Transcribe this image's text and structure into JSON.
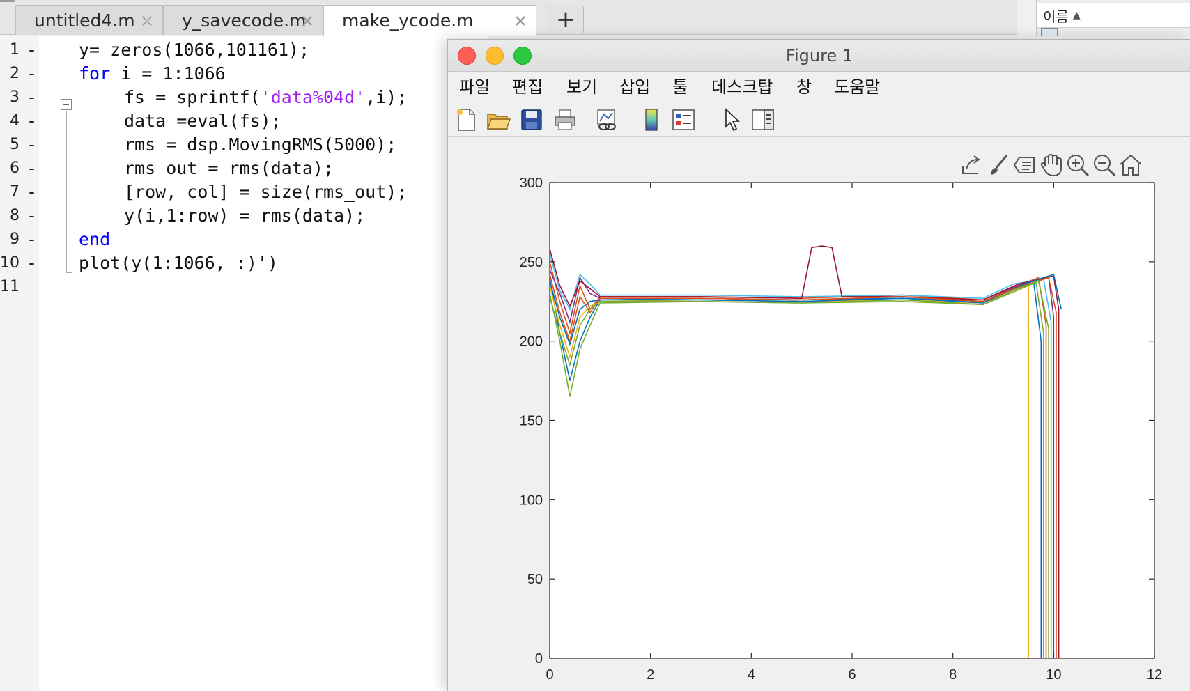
{
  "editor_tabs": [
    {
      "label": "untitled4.m",
      "active": false
    },
    {
      "label": "y_savecode.m",
      "active": false
    },
    {
      "label": "make_ycode.m",
      "active": true
    }
  ],
  "add_tab_label": "+",
  "file_panel": {
    "header": "이름",
    "sort_glyph": "▲",
    "icon": "folder-icon"
  },
  "code_lines": [
    {
      "n": "1",
      "dash": "-",
      "tokens": [
        {
          "t": "y= zeros(1066,101161);",
          "c": "plain"
        }
      ]
    },
    {
      "n": "2",
      "dash": "-",
      "tokens": [
        {
          "t": "for",
          "c": "kw"
        },
        {
          "t": " i = 1:1066",
          "c": "plain"
        }
      ]
    },
    {
      "n": "3",
      "dash": "-",
      "tokens": [
        {
          "t": "fs = sprintf(",
          "c": "plain"
        },
        {
          "t": "'data%04d'",
          "c": "str"
        },
        {
          "t": ",i);",
          "c": "plain"
        }
      ]
    },
    {
      "n": "4",
      "dash": "-",
      "tokens": [
        {
          "t": "data =eval(fs);",
          "c": "plain"
        }
      ]
    },
    {
      "n": "5",
      "dash": "-",
      "tokens": [
        {
          "t": "rms = dsp.MovingRMS(5000);",
          "c": "plain"
        }
      ]
    },
    {
      "n": "6",
      "dash": "-",
      "tokens": [
        {
          "t": "rms_out = rms(data);",
          "c": "plain"
        }
      ]
    },
    {
      "n": "7",
      "dash": "-",
      "tokens": [
        {
          "t": "[row, col] = size(rms_out);",
          "c": "plain"
        }
      ]
    },
    {
      "n": "8",
      "dash": "-",
      "tokens": [
        {
          "t": "y(i,1:row) = rms(data);",
          "c": "plain"
        }
      ]
    },
    {
      "n": "9",
      "dash": "-",
      "tokens": [
        {
          "t": "end",
          "c": "kw"
        }
      ]
    },
    {
      "n": "10",
      "dash": "-",
      "tokens": [
        {
          "t": "plot(y(1:1066, :)')",
          "c": "plain"
        }
      ]
    },
    {
      "n": "11",
      "dash": "",
      "tokens": []
    }
  ],
  "colors": {
    "keyword": "#0000ff",
    "string": "#a020f0"
  },
  "figure": {
    "title": "Figure 1",
    "menu": [
      "파일",
      "편집",
      "보기",
      "삽입",
      "툴",
      "데스크탑",
      "창",
      "도움말"
    ],
    "toolbar_icons": [
      "new-figure-icon",
      "open-file-icon",
      "save-icon",
      "print-icon",
      "link-plot-icon",
      "colorbar-icon",
      "legend-icon",
      "edit-plot-pointer-icon",
      "property-inspector-icon"
    ],
    "axes_toolbar_icons": [
      "export-icon",
      "brush-icon",
      "data-tips-icon",
      "pan-hand-icon",
      "zoom-in-icon",
      "zoom-out-icon",
      "home-icon"
    ]
  },
  "chart_data": {
    "type": "line",
    "title": "",
    "xlabel": "",
    "ylabel": "",
    "xlim": [
      0,
      12
    ],
    "ylim": [
      0,
      300
    ],
    "x_ticks": [
      "0",
      "2",
      "4",
      "6",
      "8",
      "10",
      "12"
    ],
    "y_ticks": [
      "0",
      "50",
      "100",
      "150",
      "200",
      "250",
      "300"
    ],
    "x_tick_values": [
      0,
      2,
      4,
      6,
      8,
      10,
      12
    ],
    "y_tick_values": [
      0,
      50,
      100,
      150,
      200,
      250,
      300
    ],
    "grid": false,
    "series_count_note_hidden": "",
    "series": [
      {
        "color": "#0072bd",
        "x": [
          0,
          0.2,
          0.4,
          0.6,
          0.8,
          1.0,
          3.0,
          5.0,
          7.0,
          8.6,
          9.2,
          9.6,
          9.75,
          9.75
        ],
        "y": [
          240,
          205,
          175,
          200,
          215,
          226,
          227,
          226,
          227,
          225,
          233,
          238,
          200,
          0
        ]
      },
      {
        "color": "#d95319",
        "x": [
          0,
          0.2,
          0.4,
          0.6,
          0.8,
          1.0,
          3.0,
          5.0,
          7.0,
          8.6,
          9.2,
          9.7,
          9.85,
          9.85
        ],
        "y": [
          250,
          225,
          205,
          235,
          220,
          228,
          228,
          227,
          229,
          226,
          234,
          240,
          210,
          0
        ]
      },
      {
        "color": "#edb120",
        "x": [
          0,
          0.2,
          0.4,
          0.6,
          0.8,
          1.0,
          3.0,
          5.0,
          7.0,
          8.6,
          9.2,
          9.5,
          9.5
        ],
        "y": [
          235,
          210,
          190,
          215,
          222,
          225,
          226,
          225,
          226,
          224,
          232,
          236,
          0
        ]
      },
      {
        "color": "#7e2f8e",
        "x": [
          0,
          0.2,
          0.4,
          0.6,
          0.8,
          1.0,
          3.0,
          5.0,
          7.0,
          8.6,
          9.3,
          9.9,
          10.0,
          10.0
        ],
        "y": [
          245,
          230,
          212,
          240,
          230,
          227,
          227,
          226,
          228,
          225,
          235,
          241,
          215,
          0
        ]
      },
      {
        "color": "#77ac30",
        "x": [
          0,
          0.2,
          0.4,
          0.6,
          0.8,
          1.0,
          3.0,
          5.0,
          7.0,
          8.6,
          9.2,
          9.65,
          9.8,
          9.8
        ],
        "y": [
          230,
          200,
          165,
          195,
          210,
          224,
          225,
          224,
          225,
          223,
          231,
          237,
          205,
          0
        ]
      },
      {
        "color": "#4dbeee",
        "x": [
          0,
          0.2,
          0.4,
          0.6,
          0.8,
          1.0,
          3.0,
          5.0,
          7.0,
          8.6,
          9.2,
          9.8,
          9.95,
          9.95
        ],
        "y": [
          255,
          232,
          220,
          242,
          236,
          229,
          229,
          228,
          229,
          227,
          236,
          239,
          212,
          0
        ]
      },
      {
        "color": "#a2142f",
        "x": [
          0,
          0.2,
          0.4,
          0.6,
          0.8,
          1.0,
          3.0,
          5.0,
          5.2,
          5.4,
          5.6,
          5.8,
          7.0,
          8.6,
          9.3,
          10.0,
          10.1,
          10.1
        ],
        "y": [
          258,
          235,
          222,
          238,
          233,
          228,
          228,
          227,
          259,
          260,
          259,
          228,
          228,
          226,
          236,
          241,
          220,
          0
        ]
      },
      {
        "color": "#0072bd",
        "x": [
          0,
          0.2,
          0.4,
          0.6,
          0.8,
          1.0,
          3.0,
          5.0,
          7.0,
          8.6,
          9.4,
          10.0,
          10.15
        ],
        "y": [
          238,
          215,
          198,
          220,
          225,
          226,
          226,
          225,
          227,
          224,
          236,
          242,
          220
        ]
      },
      {
        "color": "#d95319",
        "x": [
          0,
          0.2,
          0.4,
          0.6,
          0.8,
          1.0,
          3.0,
          5.0,
          7.0,
          8.6,
          9.3,
          9.9,
          10.05,
          10.05
        ],
        "y": [
          242,
          218,
          200,
          228,
          218,
          227,
          227,
          226,
          228,
          225,
          234,
          240,
          218,
          0
        ]
      },
      {
        "color": "#77ac30",
        "x": [
          0,
          0.2,
          0.4,
          0.6,
          0.8,
          1.0,
          3.0,
          5.0,
          7.0,
          8.6,
          9.2,
          9.7,
          9.9,
          9.9
        ],
        "y": [
          228,
          205,
          185,
          210,
          220,
          225,
          225,
          224,
          226,
          223,
          232,
          238,
          208,
          0
        ]
      }
    ]
  }
}
